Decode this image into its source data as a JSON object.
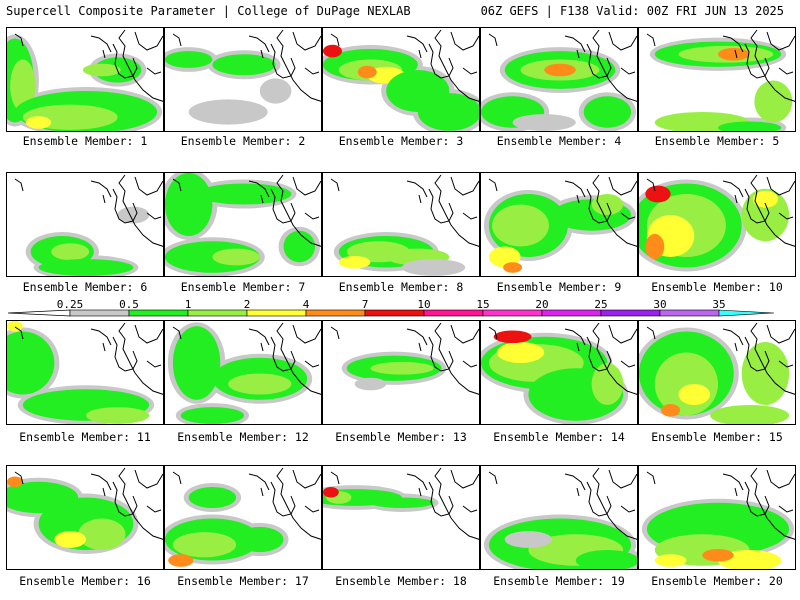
{
  "header": {
    "title_left": "Supercell Composite Parameter | College of DuPage NEXLAB",
    "title_right": "06Z GEFS | F138 Valid: 00Z FRI JUN 13 2025"
  },
  "member_label_prefix": "Ensemble Member:",
  "members": [
    {
      "number": "1",
      "label": "Ensemble Member: 1"
    },
    {
      "number": "2",
      "label": "Ensemble Member: 2"
    },
    {
      "number": "3",
      "label": "Ensemble Member: 3"
    },
    {
      "number": "4",
      "label": "Ensemble Member: 4"
    },
    {
      "number": "5",
      "label": "Ensemble Member: 5"
    },
    {
      "number": "6",
      "label": "Ensemble Member: 6"
    },
    {
      "number": "7",
      "label": "Ensemble Member: 7"
    },
    {
      "number": "8",
      "label": "Ensemble Member: 8"
    },
    {
      "number": "9",
      "label": "Ensemble Member: 9"
    },
    {
      "number": "10",
      "label": "Ensemble Member: 10"
    },
    {
      "number": "11",
      "label": "Ensemble Member: 11"
    },
    {
      "number": "12",
      "label": "Ensemble Member: 12"
    },
    {
      "number": "13",
      "label": "Ensemble Member: 13"
    },
    {
      "number": "14",
      "label": "Ensemble Member: 14"
    },
    {
      "number": "15",
      "label": "Ensemble Member: 15"
    },
    {
      "number": "16",
      "label": "Ensemble Member: 16"
    },
    {
      "number": "17",
      "label": "Ensemble Member: 17"
    },
    {
      "number": "18",
      "label": "Ensemble Member: 18"
    },
    {
      "number": "19",
      "label": "Ensemble Member: 19"
    },
    {
      "number": "20",
      "label": "Ensemble Member: 20"
    }
  ],
  "colorbar": {
    "ticks": [
      "0.25",
      "0.5",
      "1",
      "2",
      "4",
      "7",
      "10",
      "15",
      "20",
      "25",
      "30",
      "35"
    ],
    "colors": [
      "#c8c8c8",
      "#22ee22",
      "#99ee44",
      "#ffff33",
      "#ff8c1a",
      "#ee1111",
      "#ff1493",
      "#ff33cc",
      "#dd22ee",
      "#9922ee",
      "#bb66ee",
      "#33ffff"
    ]
  }
}
